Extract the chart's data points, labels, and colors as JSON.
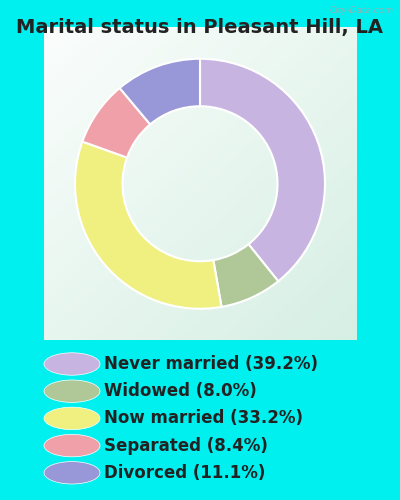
{
  "title": "Marital status in Pleasant Hill, LA",
  "slices": [
    39.2,
    8.0,
    33.2,
    8.4,
    11.1
  ],
  "labels": [
    "Never married (39.2%)",
    "Widowed (8.0%)",
    "Now married (33.2%)",
    "Separated (8.4%)",
    "Divorced (11.1%)"
  ],
  "colors": [
    "#c8b4e0",
    "#b0c898",
    "#f0f080",
    "#f0a0a8",
    "#9898d8"
  ],
  "outer_bg": "#00f0f0",
  "chart_bg_tl": "#e8f8f4",
  "chart_bg_br": "#d0ecd8",
  "title_fontsize": 14,
  "title_color": "#222222",
  "legend_fontsize": 12,
  "legend_text_color": "#222222",
  "watermark": "City-Data.com",
  "start_angle": 90,
  "donut_width": 0.38
}
